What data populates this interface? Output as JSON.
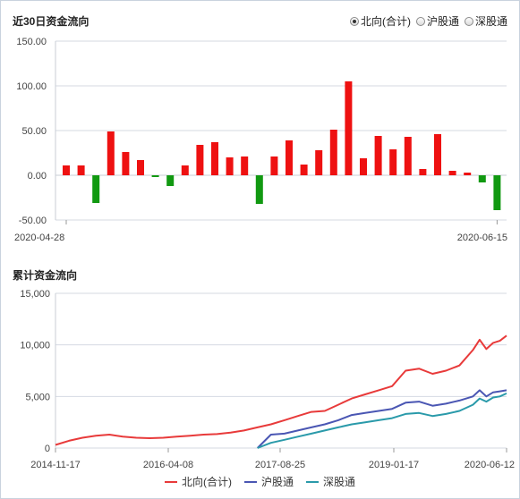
{
  "top": {
    "title": "近30日资金流向",
    "radios": [
      {
        "label": "北向(合计)",
        "checked": true
      },
      {
        "label": "沪股通",
        "checked": false
      },
      {
        "label": "深股通",
        "checked": false
      }
    ]
  },
  "bottom": {
    "title": "累计资金流向"
  },
  "colors": {
    "positive": "#ee1111",
    "negative": "#119911",
    "north": "#e83a3a",
    "sh": "#4a56b3",
    "sz": "#2a9aaa"
  },
  "chart_data": [
    {
      "type": "bar",
      "title": "近30日资金流向",
      "ylim": [
        -50,
        150
      ],
      "yticks": [
        "150.00",
        "100.00",
        "50.00",
        "0.00",
        "-50.00"
      ],
      "ytick_values": [
        150,
        100,
        50,
        0,
        -50
      ],
      "xtick_labels": [
        "2020-04-28",
        "2020-06-15"
      ],
      "values": [
        11,
        11,
        -31,
        49,
        26,
        17,
        -2,
        -12,
        11,
        34,
        37,
        20,
        21,
        -32,
        21,
        39,
        12,
        28,
        51,
        105,
        19,
        44,
        29,
        43,
        7,
        46,
        5,
        3,
        -8,
        -39
      ],
      "grid": true
    },
    {
      "type": "line",
      "title": "累计资金流向",
      "ylim": [
        0,
        15000
      ],
      "yticks": [
        "15,000",
        "10,000",
        "5,000",
        "0"
      ],
      "ytick_values": [
        15000,
        10000,
        5000,
        0
      ],
      "xtick_labels": [
        "2014-11-17",
        "2016-04-08",
        "2017-08-25",
        "2019-01-17",
        "2020-06-12"
      ],
      "x": [
        "2014-11",
        "2015-01",
        "2015-03",
        "2015-05",
        "2015-07",
        "2015-09",
        "2015-11",
        "2016-01",
        "2016-03",
        "2016-05",
        "2016-07",
        "2016-09",
        "2016-11",
        "2017-01",
        "2017-03",
        "2017-05",
        "2017-07",
        "2017-09",
        "2017-11",
        "2018-01",
        "2018-03",
        "2018-05",
        "2018-07",
        "2018-09",
        "2018-11",
        "2019-01",
        "2019-03",
        "2019-05",
        "2019-07",
        "2019-09",
        "2019-11",
        "2020-01",
        "2020-02",
        "2020-03",
        "2020-04",
        "2020-05",
        "2020-06"
      ],
      "series": [
        {
          "name": "北向(合计)",
          "values": [
            300,
            700,
            1000,
            1200,
            1300,
            1100,
            1000,
            950,
            1000,
            1100,
            1200,
            1300,
            1350,
            1500,
            1700,
            2000,
            2300,
            2700,
            3100,
            3500,
            3600,
            4200,
            4800,
            5200,
            5600,
            6000,
            7500,
            7700,
            7200,
            7500,
            8000,
            9500,
            10500,
            9600,
            10200,
            10400,
            10900
          ]
        },
        {
          "name": "沪股通",
          "values": [
            null,
            null,
            null,
            null,
            null,
            null,
            null,
            null,
            null,
            null,
            null,
            null,
            null,
            null,
            null,
            0,
            1300,
            1400,
            1700,
            2000,
            2300,
            2700,
            3200,
            3400,
            3600,
            3800,
            4400,
            4500,
            4100,
            4300,
            4600,
            5000,
            5600,
            5000,
            5400,
            5500,
            5600
          ]
        },
        {
          "name": "深股通",
          "values": [
            null,
            null,
            null,
            null,
            null,
            null,
            null,
            null,
            null,
            null,
            null,
            null,
            null,
            null,
            null,
            0,
            500,
            800,
            1100,
            1400,
            1700,
            2000,
            2300,
            2500,
            2700,
            2900,
            3300,
            3400,
            3100,
            3300,
            3600,
            4200,
            4800,
            4500,
            4900,
            5000,
            5300
          ]
        }
      ],
      "grid": true
    }
  ]
}
